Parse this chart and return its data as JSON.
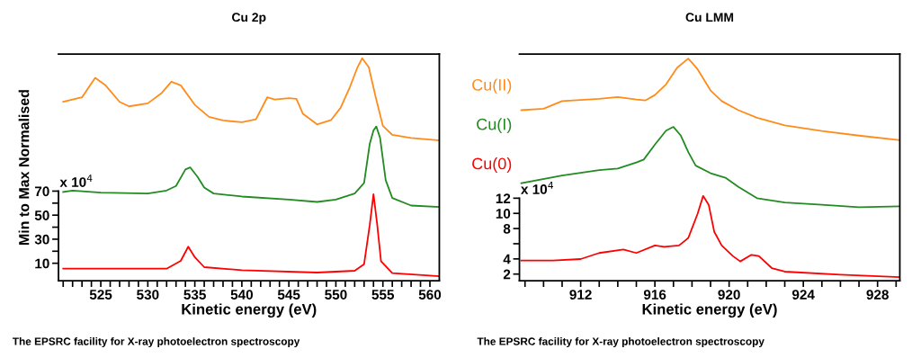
{
  "chart_data": [
    {
      "type": "line",
      "title": "Cu 2p",
      "xlabel": "Kinetic energy (eV)",
      "ylabel": "Min to Max Normalised",
      "annotations": [
        "x 10$^{4}$",
        "The EPSRC facility for X-ray photoelectron spectroscopy"
      ],
      "xlim": [
        520.5,
        561
      ],
      "ylim": [
        -4.5,
        184
      ],
      "xticks": [
        {
          "value": 521,
          "label": null
        },
        {
          "value": 522,
          "label": null
        },
        {
          "value": 523,
          "label": null
        },
        {
          "value": 524,
          "label": null
        },
        525,
        {
          "value": 526,
          "label": null
        },
        {
          "value": 527,
          "label": null
        },
        {
          "value": 528,
          "label": null
        },
        {
          "value": 529,
          "label": null
        },
        530,
        {
          "value": 531,
          "label": null
        },
        {
          "value": 532,
          "label": null
        },
        {
          "value": 533,
          "label": null
        },
        {
          "value": 534,
          "label": null
        },
        535,
        {
          "value": 536,
          "label": null
        },
        {
          "value": 537,
          "label": null
        },
        {
          "value": 538,
          "label": null
        },
        {
          "value": 539,
          "label": null
        },
        540,
        {
          "value": 541,
          "label": null
        },
        {
          "value": 542,
          "label": null
        },
        {
          "value": 543,
          "label": null
        },
        {
          "value": 544,
          "label": null
        },
        545,
        {
          "value": 546,
          "label": null
        },
        {
          "value": 547,
          "label": null
        },
        {
          "value": 548,
          "label": null
        },
        {
          "value": 549,
          "label": null
        },
        550,
        {
          "value": 551,
          "label": null
        },
        {
          "value": 552,
          "label": null
        },
        {
          "value": 553,
          "label": null
        },
        {
          "value": 554,
          "label": null
        },
        555,
        {
          "value": 556,
          "label": null
        },
        {
          "value": 557,
          "label": null
        },
        {
          "value": 558,
          "label": null
        },
        {
          "value": 559,
          "label": null
        },
        560
      ],
      "yticks": [
        10,
        {
          "value": 20,
          "label": null
        },
        30,
        {
          "value": 40,
          "label": null
        },
        50,
        {
          "value": 60,
          "label": null
        },
        70
      ],
      "grid": false,
      "series": [
        {
          "color": "#ff0000",
          "x": [
            521,
            525,
            532,
            533.5,
            534.3,
            535,
            536,
            540,
            548,
            552,
            553,
            553.6,
            554.0,
            554.4,
            554.8,
            556,
            561
          ],
          "values": [
            5.5,
            5.5,
            5.5,
            12,
            23.75,
            15,
            6.75,
            4.25,
            2.25,
            3.75,
            9.25,
            41.75,
            67.5,
            41.75,
            11.75,
            1.75,
            -0.75
          ]
        },
        {
          "color": "#228b22",
          "x": [
            521,
            522,
            525,
            530,
            532,
            533,
            534,
            534.5,
            535.3,
            536,
            537,
            540,
            545,
            548,
            550,
            552,
            553,
            553.6,
            554,
            554.3,
            554.7,
            555.3,
            556,
            558,
            561
          ],
          "values": [
            69.25,
            70.5,
            68.75,
            68,
            70.5,
            74.25,
            88,
            89.75,
            81.75,
            73,
            68,
            65.5,
            63,
            61,
            63,
            68,
            76.75,
            109.25,
            120.5,
            123.75,
            114.25,
            79,
            64.25,
            58,
            56.75
          ]
        },
        {
          "color": "#ff8c1a",
          "x": [
            521,
            523,
            524.4,
            525.5,
            527,
            528,
            530,
            531.5,
            532.5,
            533.5,
            535,
            536.5,
            538,
            540,
            541.5,
            542.7,
            543.5,
            545,
            545.8,
            546.5,
            548,
            549.5,
            550.5,
            551.5,
            552.3,
            552.8,
            553.5,
            554.2,
            555,
            556,
            558,
            561
          ],
          "values": [
            144.25,
            148,
            164.25,
            158,
            144.25,
            140.5,
            143,
            151.75,
            161,
            158,
            141.75,
            131.75,
            128.75,
            127.25,
            129.75,
            148,
            146.25,
            147.25,
            146.75,
            134.25,
            125.5,
            129.25,
            139.25,
            156.75,
            173,
            180.5,
            173,
            149.25,
            124.25,
            116.75,
            114.25,
            112.25
          ]
        }
      ]
    },
    {
      "type": "line",
      "title": "Cu LMM",
      "xlabel": "Kinetic energy (eV)",
      "annotations": [
        "x 10$^{4}$",
        "The EPSRC facility for X-ray photoelectron spectroscopy"
      ],
      "xlim": [
        908.7,
        929.2
      ],
      "ylim": [
        1.13,
        31
      ],
      "xticks": [
        {
          "value": 909,
          "label": null
        },
        {
          "value": 910,
          "label": null
        },
        {
          "value": 911,
          "label": null
        },
        912,
        {
          "value": 913,
          "label": null
        },
        {
          "value": 914,
          "label": null
        },
        {
          "value": 915,
          "label": null
        },
        916,
        {
          "value": 917,
          "label": null
        },
        {
          "value": 918,
          "label": null
        },
        {
          "value": 919,
          "label": null
        },
        920,
        {
          "value": 921,
          "label": null
        },
        {
          "value": 922,
          "label": null
        },
        {
          "value": 923,
          "label": null
        },
        924,
        {
          "value": 925,
          "label": null
        },
        {
          "value": 926,
          "label": null
        },
        {
          "value": 927,
          "label": null
        },
        928,
        {
          "value": 929,
          "label": null
        }
      ],
      "yticks": [
        2,
        4,
        {
          "value": 6,
          "label": null
        },
        8,
        10,
        12
      ],
      "grid": false,
      "series": [
        {
          "name": "Cu(II)",
          "color": "#ff8c1a",
          "x": [
            908.8,
            910,
            911,
            913,
            914,
            915,
            915.5,
            916,
            916.6,
            917.2,
            917.8,
            918.3,
            919,
            919.6,
            920.5,
            921.5,
            923,
            925,
            927,
            929.2
          ],
          "values": [
            23.6,
            23.8,
            24.8,
            25.1,
            25.33,
            25.0,
            24.9,
            25.6,
            27.0,
            29.2,
            30.4,
            29.0,
            26.2,
            24.8,
            23.6,
            22.6,
            21.6,
            20.85,
            20.25,
            19.66
          ]
        },
        {
          "name": "Cu(I)",
          "color": "#228b22",
          "x": [
            908.8,
            911,
            913,
            914,
            915,
            915.4,
            916,
            916.6,
            917,
            917.4,
            917.8,
            918.2,
            919,
            919.8,
            920.5,
            921.5,
            923,
            925,
            927,
            929.2
          ],
          "values": [
            13.98,
            15.0,
            15.7,
            15.9,
            16.7,
            17.1,
            19.06,
            20.9,
            21.4,
            20.25,
            18.07,
            16.3,
            15.3,
            14.7,
            13.5,
            12.0,
            11.44,
            11.13,
            10.8,
            10.93
          ]
        },
        {
          "name": "Cu(0)",
          "color": "#ff0000",
          "x": [
            908.8,
            910.5,
            912,
            913,
            914.3,
            915,
            916,
            916.5,
            917.3,
            917.8,
            918.3,
            918.6,
            918.9,
            919.2,
            919.6,
            920.2,
            920.6,
            921.2,
            921.6,
            922.3,
            923,
            926,
            929.2
          ],
          "values": [
            3.79,
            3.79,
            3.98,
            4.78,
            5.25,
            4.78,
            5.77,
            5.6,
            5.77,
            6.76,
            9.94,
            12.3,
            11.13,
            7.56,
            5.77,
            4.38,
            3.67,
            4.54,
            4.38,
            2.79,
            2.32,
            1.92,
            1.6
          ]
        }
      ]
    }
  ]
}
